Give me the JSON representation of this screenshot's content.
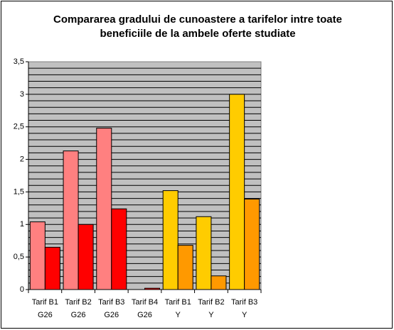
{
  "chart_data": {
    "type": "bar",
    "title": "Compararea gradului de cunoastere a tarifelor intre toate beneficiile de la ambele oferte studiate",
    "categories": [
      [
        "Tarif B1",
        "G26"
      ],
      [
        "Tarif B2",
        "G26"
      ],
      [
        "Tarif B3",
        "G26"
      ],
      [
        "Tarif B4",
        "G26"
      ],
      [
        "Tarif B1",
        "Y"
      ],
      [
        "Tarif B2",
        "Y"
      ],
      [
        "Tarif B3",
        "Y"
      ]
    ],
    "series": [
      {
        "values": [
          1.04,
          2.13,
          2.48,
          0,
          1.52,
          1.12,
          3.0
        ],
        "colors": [
          "#FF8080",
          "#FF8080",
          "#FF8080",
          "#FF8080",
          "#FFCC00",
          "#FFCC00",
          "#FFCC00"
        ]
      },
      {
        "values": [
          0.65,
          1.0,
          1.24,
          0.02,
          0.68,
          0.21,
          1.39
        ],
        "colors": [
          "#FF0000",
          "#FF0000",
          "#FF0000",
          "#FF0000",
          "#FF9900",
          "#FF9900",
          "#FF9900"
        ]
      }
    ],
    "ylim": [
      0,
      3.5
    ],
    "yticks": [
      0,
      {
        "value": 0.5,
        "label": "0,5"
      },
      1,
      {
        "value": 1.5,
        "label": "1,5"
      },
      2,
      {
        "value": 2.5,
        "label": "2,5"
      },
      3,
      {
        "value": 3.5,
        "label": "3,5"
      }
    ],
    "minor_grid": 0.1,
    "plot_background": "#C0C0C0",
    "grid": true
  }
}
